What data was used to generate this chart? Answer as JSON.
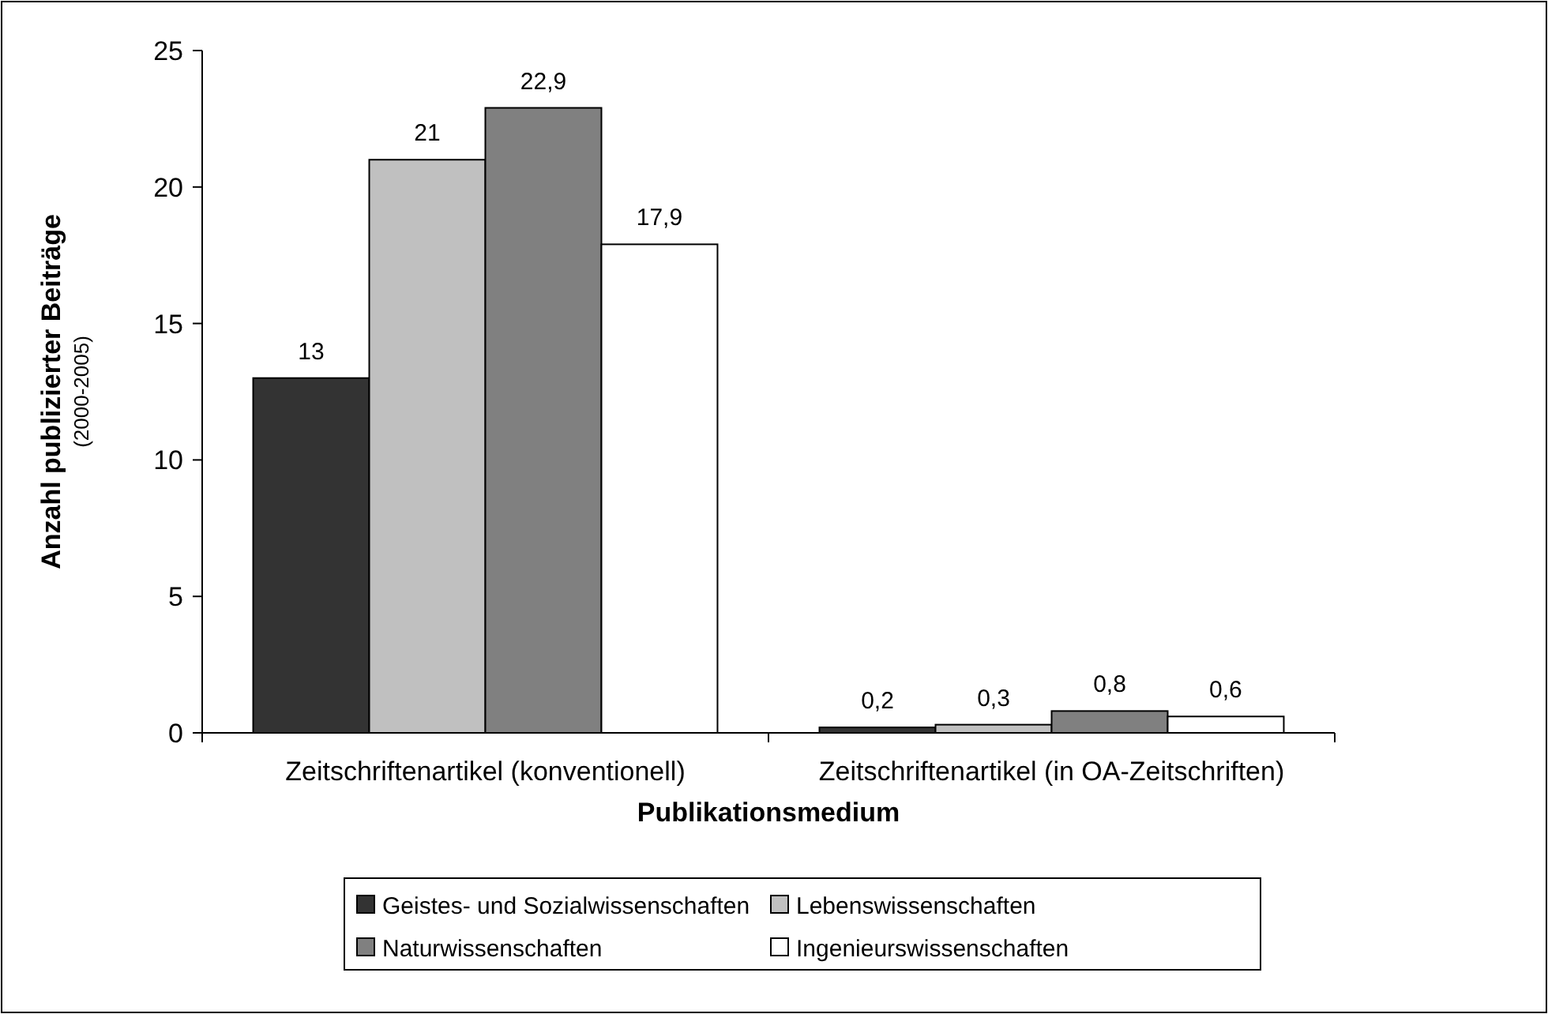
{
  "chart_data": {
    "type": "bar",
    "xlabel": "Publikationsmedium",
    "ylabel": "Anzahl publizierter Beiträge\n(2000-2005)",
    "categories": [
      "Zeitschriftenartikel (konventionell)",
      "Zeitschriftenartikel (in OA-Zeitschriften)"
    ],
    "series": [
      {
        "name": "Geistes- und Sozialwissenschaften",
        "color": "#333333",
        "values": [
          13,
          0.2
        ],
        "value_labels": [
          "13",
          "0,2"
        ]
      },
      {
        "name": "Lebenswissenschaften",
        "color": "#c0c0c0",
        "values": [
          21,
          0.3
        ],
        "value_labels": [
          "21",
          "0,3"
        ]
      },
      {
        "name": "Naturwissenschaften",
        "color": "#808080",
        "values": [
          22.9,
          0.8
        ],
        "value_labels": [
          "22,9",
          "0,8"
        ]
      },
      {
        "name": "Ingenieurswissenschaften",
        "color": "#ffffff",
        "values": [
          17.9,
          0.6
        ],
        "value_labels": [
          "17,9",
          "0,6"
        ]
      }
    ],
    "ylim": [
      0,
      25
    ],
    "yticks": [
      0,
      5,
      10,
      15,
      20,
      25
    ],
    "grid": false,
    "legend": "bottom"
  }
}
